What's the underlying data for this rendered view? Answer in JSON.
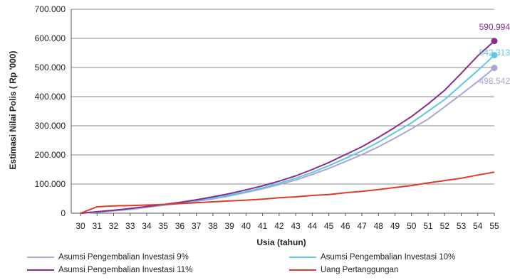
{
  "chart_data": {
    "type": "line",
    "title": "",
    "xlabel": "Usia (tahun)",
    "ylabel": "Estimasi Nilai Polis ( Rp '000)",
    "categories": [
      "30",
      "31",
      "32",
      "33",
      "34",
      "35",
      "36",
      "37",
      "38",
      "39",
      "40",
      "41",
      "42",
      "43",
      "44",
      "45",
      "46",
      "47",
      "48",
      "49",
      "50",
      "51",
      "52",
      "53",
      "54",
      "55"
    ],
    "ylim": [
      0,
      700000
    ],
    "yticks": [
      0,
      100000,
      200000,
      300000,
      400000,
      500000,
      600000,
      700000
    ],
    "ytick_labels": [
      "0",
      "100.000",
      "200.000",
      "300.000",
      "400.000",
      "500.000",
      "600.000",
      "700.000"
    ],
    "grid": "horizontal",
    "legend_position": "bottom",
    "series": [
      {
        "name": "Asumsi Pengembalian Investasi  9%",
        "color": "#a9a7d6",
        "values": [
          0,
          3000,
          8000,
          13000,
          20000,
          27000,
          34000,
          41000,
          49000,
          59000,
          71000,
          84000,
          98000,
          114000,
          133000,
          154000,
          177000,
          201000,
          228000,
          258000,
          290000,
          323000,
          365000,
          408000,
          452000,
          498542
        ],
        "end_label": "498.542"
      },
      {
        "name": "Asumsi Pengembalian Investasi 10%",
        "color": "#5fc8e0",
        "values": [
          0,
          4000,
          9000,
          15000,
          22000,
          29000,
          36000,
          43000,
          52000,
          62000,
          74000,
          87000,
          103000,
          120000,
          140000,
          163000,
          188000,
          214000,
          244000,
          277000,
          310000,
          350000,
          390000,
          440000,
          490000,
          542313
        ],
        "end_label": "542.313"
      },
      {
        "name": "Asumsi Pengembalian Investasi 11%",
        "color": "#8a2c8c",
        "values": [
          0,
          5000,
          10000,
          16000,
          23000,
          30000,
          37000,
          46000,
          56000,
          67000,
          80000,
          94000,
          110000,
          128000,
          150000,
          174000,
          201000,
          228000,
          260000,
          295000,
          332000,
          375000,
          422000,
          480000,
          540000,
          590994
        ],
        "end_label": "590.994"
      },
      {
        "name": "Uang Pertanggungan",
        "color": "#e03a2a",
        "values": [
          0,
          22000,
          25000,
          26000,
          28000,
          30000,
          33000,
          36000,
          39000,
          42000,
          45000,
          48000,
          53000,
          56000,
          61000,
          64000,
          70000,
          75000,
          81000,
          88000,
          95000,
          104000,
          112000,
          120000,
          131000,
          141000
        ]
      }
    ]
  }
}
